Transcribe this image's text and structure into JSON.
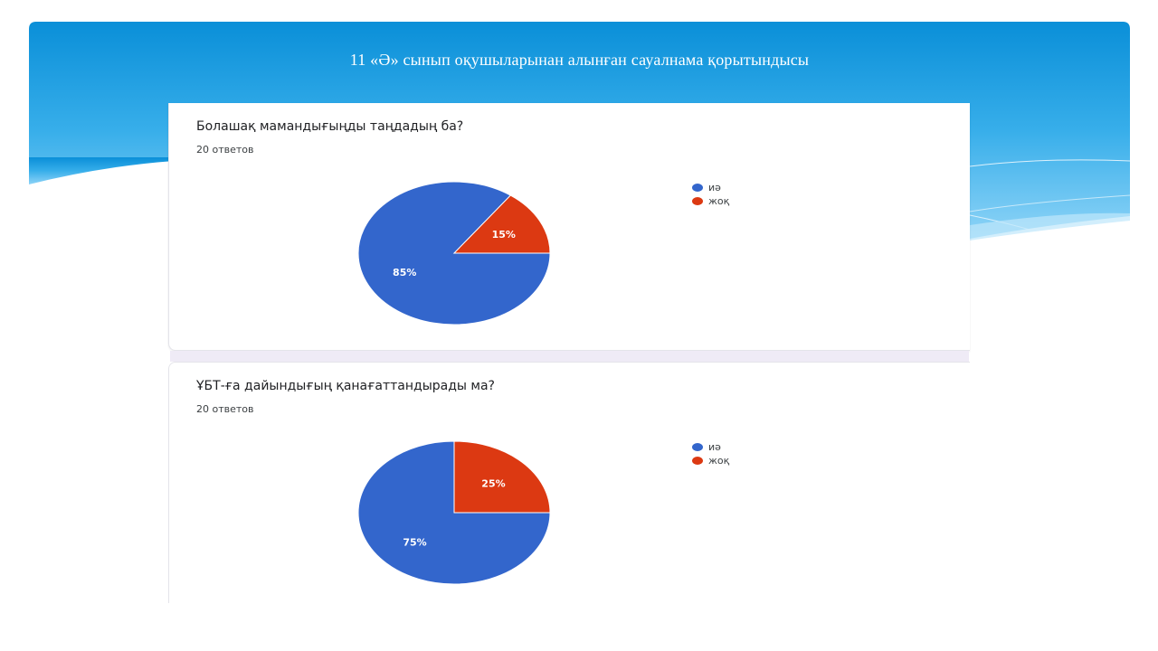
{
  "slide": {
    "title": "11 «Ә» сынып оқушыларынан  алынған  сауалнама  қорытындысы"
  },
  "colors": {
    "yes": "#3366cc",
    "no": "#dc3912",
    "banner_top": "#0a90d8",
    "banner_bottom": "#7fcdf5"
  },
  "chart_data": [
    {
      "type": "pie",
      "title": "Болашақ мамандығыңды таңдадың ба?",
      "subtitle": "20 ответов",
      "categories": [
        "иә",
        "жоқ"
      ],
      "values": [
        85,
        15
      ],
      "value_labels": [
        "85%",
        "15%"
      ],
      "legend_position": "right"
    },
    {
      "type": "pie",
      "title": "ҰБТ-ға дайындығың қанағаттандырады ма?",
      "subtitle": "20 ответов",
      "categories": [
        "иә",
        "жоқ"
      ],
      "values": [
        75,
        25
      ],
      "value_labels": [
        "75%",
        "25%"
      ],
      "legend_position": "right"
    }
  ]
}
